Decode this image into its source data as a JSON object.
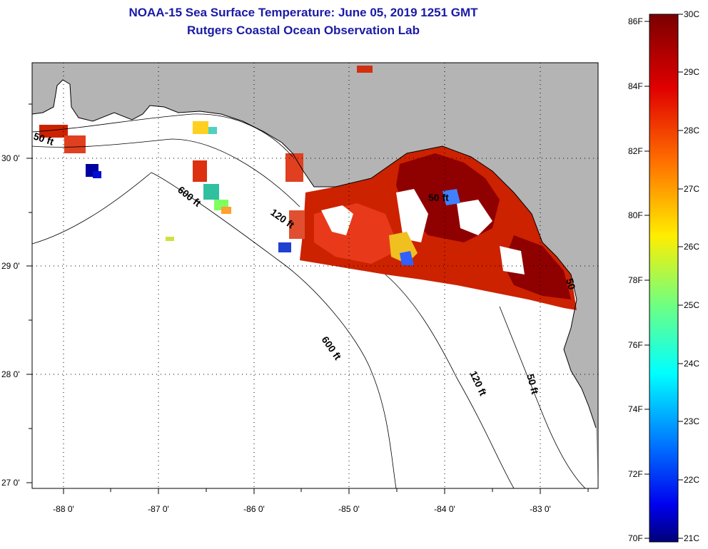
{
  "title": {
    "line1": "NOAA-15 Sea Surface Temperature:  June 05, 2019 1251 GMT",
    "line2": "Rutgers Coastal Ocean Observation Lab"
  },
  "map": {
    "lon_labels": [
      "-88 0'",
      "-87 0'",
      "-86 0'",
      "-85 0'",
      "-84 0'",
      "-83 0'"
    ],
    "lat_labels": [
      "30 0'",
      "29 0'",
      "28 0'",
      "27 0'"
    ],
    "contours": [
      "50 ft",
      "600 ft",
      "120 ft",
      "50 ft",
      "600 ft",
      "120 ft",
      "50 ft",
      "50"
    ],
    "land_color": "#b4b4b4",
    "ocean_color": "#ffffff"
  },
  "colorbar": {
    "f_labels": [
      "86F",
      "84F",
      "82F",
      "80F",
      "78F",
      "76F",
      "74F",
      "72F",
      "70F"
    ],
    "c_labels": [
      "30C",
      "29C",
      "28C",
      "27C",
      "26C",
      "25C",
      "24C",
      "23C",
      "22C",
      "21C"
    ],
    "colors": [
      "#800000",
      "#ff0000",
      "#ff8000",
      "#ffff00",
      "#80ff80",
      "#00ffff",
      "#0080ff",
      "#0000ff",
      "#000080"
    ]
  }
}
